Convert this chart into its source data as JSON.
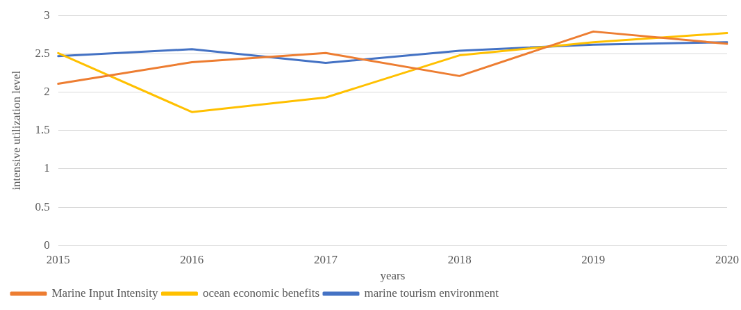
{
  "chart_data": {
    "type": "line",
    "xlabel": "years",
    "ylabel": "intensive utilization level",
    "categories": [
      "2015",
      "2016",
      "2017",
      "2018",
      "2019",
      "2020"
    ],
    "series": [
      {
        "name": "Marine Input Intensity",
        "color": "#ed7d31",
        "values": [
          2.11,
          2.39,
          2.51,
          2.21,
          2.79,
          2.63
        ]
      },
      {
        "name": "ocean economic benefits",
        "color": "#ffc000",
        "values": [
          2.51,
          1.74,
          1.93,
          2.48,
          2.65,
          2.77
        ]
      },
      {
        "name": "marine tourism environment",
        "color": "#4472c4",
        "values": [
          2.47,
          2.56,
          2.38,
          2.54,
          2.62,
          2.65
        ]
      }
    ],
    "ylim": [
      0,
      3
    ],
    "yticks": [
      0,
      0.5,
      1,
      1.5,
      2,
      2.5,
      3
    ],
    "grid": "y",
    "legend": "bottom",
    "marker": "none",
    "line_style": "solid"
  }
}
